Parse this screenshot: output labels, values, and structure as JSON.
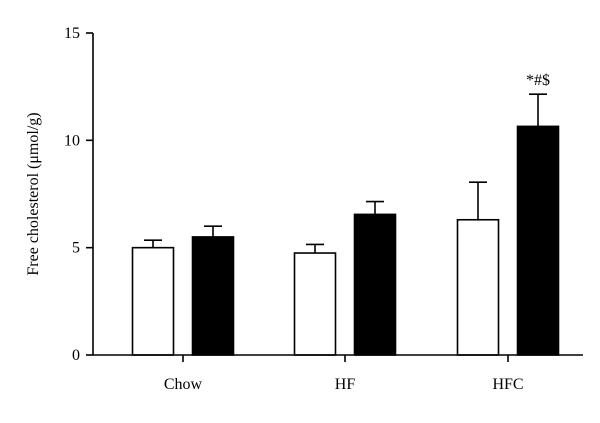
{
  "chart_data": {
    "type": "bar",
    "categories": [
      "Chow",
      "HF",
      "HFC"
    ],
    "ylabel": "Free cholesterol (μmol/g)",
    "ylim": [
      0,
      15
    ],
    "yticks": [
      0,
      5,
      10,
      15
    ],
    "grid": false,
    "series": [
      {
        "fill": "#ffffff",
        "values": [
          5.0,
          4.75,
          6.3
        ],
        "error": [
          0.35,
          0.4,
          1.75
        ]
      },
      {
        "fill": "#000000",
        "values": [
          5.5,
          6.55,
          10.65
        ],
        "error": [
          0.5,
          0.6,
          1.5
        ]
      }
    ],
    "annotations": [
      {
        "category": "HFC",
        "series": 1,
        "text": "*#$"
      }
    ]
  }
}
